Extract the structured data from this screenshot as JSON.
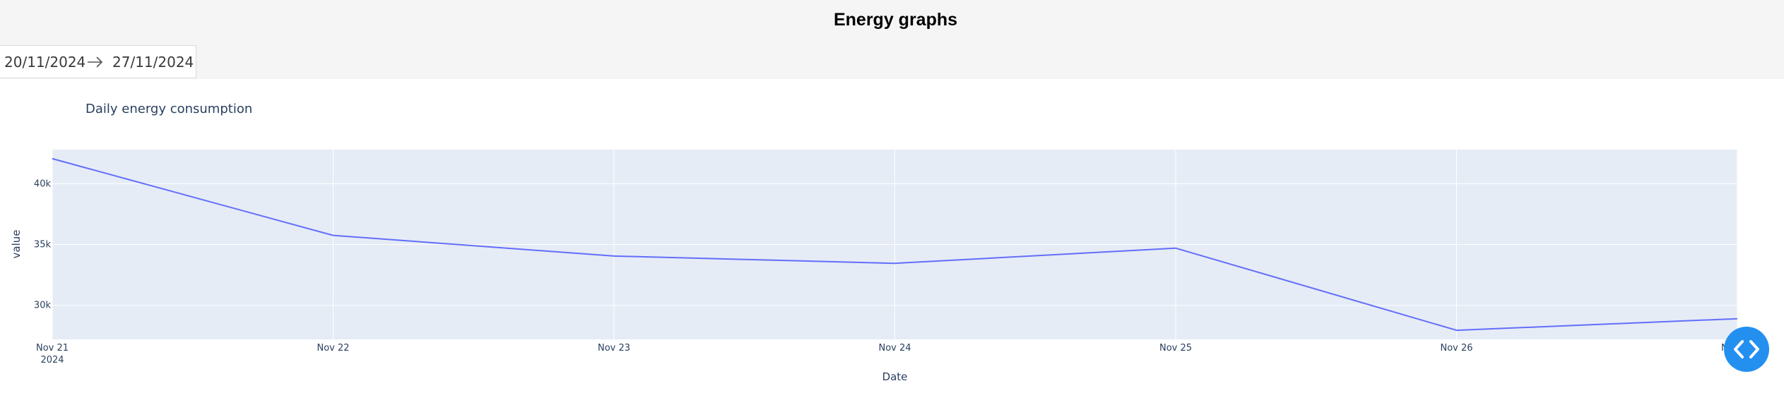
{
  "header": {
    "title": "Energy graphs"
  },
  "date_range": {
    "start": "20/11/2024",
    "end": "27/11/2024"
  },
  "chart": {
    "title": "Daily energy consumption",
    "xlabel": "Date",
    "ylabel": "value",
    "x_tick_labels": [
      "Nov 21",
      "Nov 22",
      "Nov 23",
      "Nov 24",
      "Nov 25",
      "Nov 26",
      "Nov 27"
    ],
    "x_tick_sublabel": "2024",
    "y_tick_labels": [
      "30k",
      "35k",
      "40k"
    ]
  },
  "chart_data": {
    "type": "line",
    "title": "Daily energy consumption",
    "xlabel": "Date",
    "ylabel": "value",
    "x": [
      "2024-11-21",
      "2024-11-22",
      "2024-11-23",
      "2024-11-24",
      "2024-11-25",
      "2024-11-26",
      "2024-11-27"
    ],
    "series": [
      {
        "values": [
          42050,
          35750,
          34050,
          33450,
          34700,
          27950,
          28900
        ]
      }
    ],
    "ylim": [
      27200,
      42800
    ],
    "y_ticks": [
      30000,
      35000,
      40000
    ],
    "grid": true,
    "colors": {
      "line": "#636efa",
      "plot_bg": "#e5ecf6",
      "grid": "#ffffff"
    }
  },
  "embed_button": {
    "icon": "code-icon",
    "color": "#2390f0"
  }
}
